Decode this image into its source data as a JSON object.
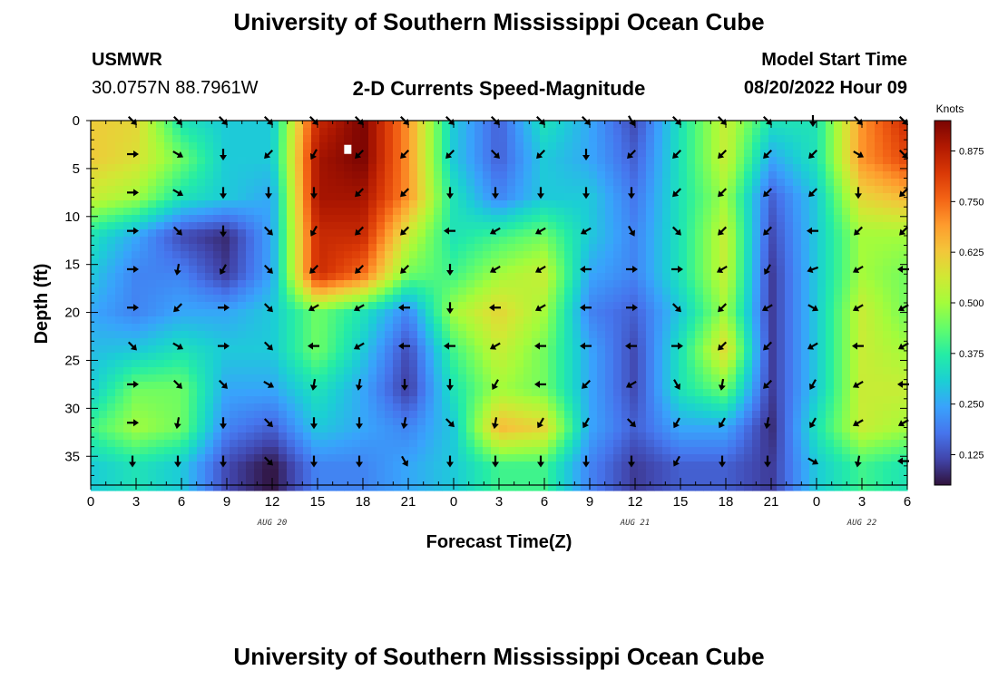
{
  "page": {
    "title_top": "University of Southern Mississippi Ocean Cube",
    "title_bottom": "University of Southern Mississippi Ocean Cube",
    "station_name": "USMWR",
    "station_coords": "30.0757N  88.7961W",
    "model_start_label": "Model Start Time",
    "model_start_value": "08/20/2022 Hour 09"
  },
  "chart_data": {
    "type": "heatmap",
    "title": "2-D Currents Speed-Magnitude",
    "xlabel": "Forecast Time(Z)",
    "ylabel": "Depth (ft)",
    "x_range_hours": [
      0,
      54
    ],
    "ylim": [
      0,
      38
    ],
    "y_inverted": true,
    "x_ticks": [
      "0",
      "3",
      "6",
      "9",
      "12",
      "15",
      "18",
      "21",
      "0",
      "3",
      "6",
      "9",
      "12",
      "15",
      "18",
      "21",
      "0",
      "3",
      "6"
    ],
    "y_ticks": [
      "0",
      "5",
      "10",
      "15",
      "20",
      "25",
      "30",
      "35"
    ],
    "date_labels": [
      {
        "text": "AUG 20",
        "hour": 12
      },
      {
        "text": "AUG 21",
        "hour": 36
      },
      {
        "text": "AUG 22",
        "hour": 51
      }
    ],
    "colorbar": {
      "title": "Knots",
      "ticks": [
        "0.125",
        "0.250",
        "0.375",
        "0.500",
        "0.625",
        "0.750",
        "0.875"
      ],
      "range": [
        0.05,
        0.95
      ],
      "colormap": [
        "#30123b",
        "#4145ab",
        "#4675ed",
        "#39a2fc",
        "#1bcfd4",
        "#24eca6",
        "#61fc6c",
        "#a4fc3b",
        "#d1e834",
        "#f3c63a",
        "#fe9b2d",
        "#f36315",
        "#d93806",
        "#b11901",
        "#7a0402"
      ]
    },
    "depth_levels": [
      0,
      4,
      8,
      12,
      16,
      20,
      24,
      28,
      32,
      36
    ],
    "speed_knots": [
      [
        0.62,
        0.6,
        0.35,
        0.3,
        0.3,
        0.85,
        0.95,
        0.7,
        0.3,
        0.15,
        0.35,
        0.25,
        0.12,
        0.35,
        0.55,
        0.35,
        0.35,
        0.7,
        0.85
      ],
      [
        0.62,
        0.58,
        0.45,
        0.3,
        0.3,
        0.9,
        0.95,
        0.7,
        0.3,
        0.15,
        0.3,
        0.25,
        0.15,
        0.35,
        0.55,
        0.25,
        0.35,
        0.7,
        0.8
      ],
      [
        0.55,
        0.5,
        0.35,
        0.3,
        0.25,
        0.9,
        0.9,
        0.7,
        0.35,
        0.2,
        0.3,
        0.3,
        0.18,
        0.35,
        0.5,
        0.15,
        0.3,
        0.6,
        0.65
      ],
      [
        0.35,
        0.25,
        0.12,
        0.08,
        0.25,
        0.85,
        0.85,
        0.55,
        0.35,
        0.4,
        0.45,
        0.3,
        0.2,
        0.35,
        0.55,
        0.12,
        0.3,
        0.5,
        0.5
      ],
      [
        0.3,
        0.2,
        0.2,
        0.1,
        0.25,
        0.85,
        0.75,
        0.45,
        0.4,
        0.5,
        0.55,
        0.25,
        0.2,
        0.35,
        0.55,
        0.1,
        0.3,
        0.5,
        0.45
      ],
      [
        0.25,
        0.2,
        0.25,
        0.25,
        0.3,
        0.45,
        0.35,
        0.2,
        0.5,
        0.6,
        0.5,
        0.2,
        0.15,
        0.3,
        0.5,
        0.1,
        0.3,
        0.55,
        0.45
      ],
      [
        0.28,
        0.3,
        0.35,
        0.3,
        0.3,
        0.45,
        0.3,
        0.12,
        0.4,
        0.55,
        0.45,
        0.25,
        0.12,
        0.35,
        0.6,
        0.1,
        0.3,
        0.55,
        0.5
      ],
      [
        0.3,
        0.45,
        0.45,
        0.25,
        0.25,
        0.35,
        0.25,
        0.1,
        0.35,
        0.5,
        0.45,
        0.25,
        0.12,
        0.35,
        0.45,
        0.1,
        0.3,
        0.55,
        0.55
      ],
      [
        0.4,
        0.5,
        0.45,
        0.2,
        0.15,
        0.3,
        0.25,
        0.2,
        0.3,
        0.65,
        0.6,
        0.25,
        0.15,
        0.25,
        0.25,
        0.08,
        0.35,
        0.55,
        0.5
      ],
      [
        0.3,
        0.35,
        0.3,
        0.12,
        0.05,
        0.2,
        0.2,
        0.25,
        0.3,
        0.4,
        0.4,
        0.2,
        0.1,
        0.15,
        0.15,
        0.1,
        0.3,
        0.4,
        0.35
      ]
    ],
    "vectors": {
      "hours": [
        3,
        6,
        9,
        12,
        15,
        18,
        21,
        24,
        27,
        30,
        33,
        36,
        39,
        42,
        45,
        48,
        51,
        54
      ],
      "depths": [
        0,
        3.5,
        7.5,
        11.5,
        15.5,
        19.5,
        23.5,
        27.5,
        31.5,
        35.5
      ],
      "direction_deg": [
        [
          45,
          45,
          45,
          45,
          45,
          45,
          45,
          45,
          45,
          45,
          45,
          60,
          45,
          45,
          45,
          90,
          45,
          45
        ],
        [
          0,
          30,
          90,
          135,
          120,
          135,
          135,
          135,
          45,
          135,
          90,
          135,
          135,
          135,
          135,
          135,
          30,
          45
        ],
        [
          0,
          30,
          90,
          90,
          90,
          135,
          135,
          90,
          90,
          90,
          90,
          90,
          135,
          135,
          135,
          135,
          90,
          135
        ],
        [
          0,
          45,
          90,
          45,
          120,
          135,
          135,
          180,
          150,
          150,
          150,
          60,
          45,
          135,
          135,
          180,
          135,
          135
        ],
        [
          0,
          100,
          120,
          45,
          135,
          135,
          135,
          90,
          150,
          150,
          180,
          0,
          0,
          150,
          120,
          160,
          150,
          180
        ],
        [
          0,
          135,
          0,
          45,
          150,
          150,
          180,
          90,
          180,
          150,
          180,
          0,
          45,
          135,
          150,
          30,
          150,
          150
        ],
        [
          45,
          30,
          0,
          45,
          180,
          150,
          180,
          180,
          150,
          180,
          180,
          180,
          0,
          135,
          135,
          150,
          180,
          150
        ],
        [
          0,
          45,
          45,
          30,
          100,
          100,
          90,
          90,
          120,
          180,
          135,
          150,
          60,
          100,
          135,
          120,
          150,
          180
        ],
        [
          0,
          100,
          90,
          45,
          90,
          90,
          100,
          45,
          100,
          120,
          120,
          45,
          120,
          120,
          100,
          120,
          150,
          150
        ],
        [
          90,
          90,
          90,
          45,
          90,
          90,
          60,
          90,
          90,
          90,
          90,
          90,
          120,
          90,
          90,
          30,
          100,
          180
        ]
      ]
    },
    "annotations": [
      {
        "type": "white-marker",
        "hour": 17,
        "depth": 3
      }
    ]
  }
}
